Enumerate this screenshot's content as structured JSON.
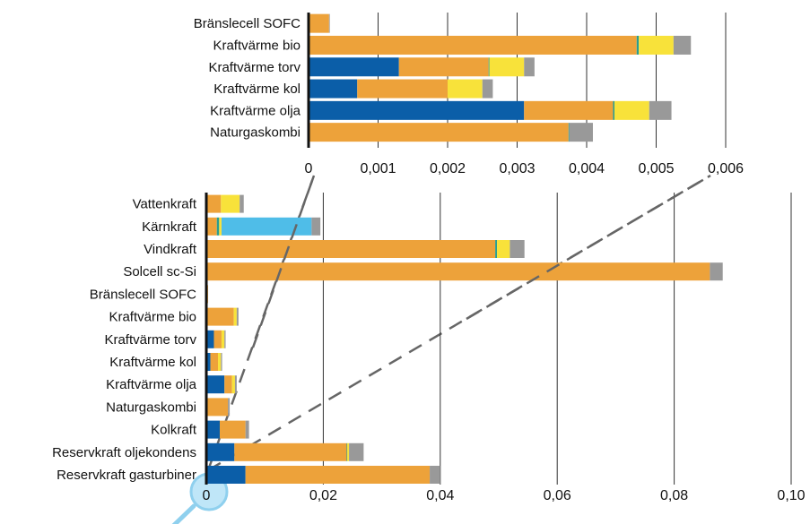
{
  "palette": {
    "dark_blue": "#0b5ea8",
    "orange": "#eda23a",
    "teal": "#2a9d8f",
    "yellow": "#f8e23a",
    "light_blue": "#4fbde8",
    "gray": "#999999",
    "grid": "#333333",
    "dash": "#666666",
    "magnifier": "#8fd0ee"
  },
  "chart_data": [
    {
      "type": "bar",
      "orientation": "horizontal",
      "stacked": true,
      "position": "top inset",
      "xlim": [
        0,
        0.006
      ],
      "xticks": [
        "0",
        "0,001",
        "0,002",
        "0,003",
        "0,004",
        "0,005",
        "0,006"
      ],
      "grid": "vertical",
      "categories": [
        "Bränslecell SOFC",
        "Kraftvärme bio",
        "Kraftvärme torv",
        "Kraftvärme kol",
        "Kraftvärme olja",
        "Naturgaskombi"
      ],
      "segment_colors": [
        "dark_blue",
        "orange",
        "teal",
        "yellow",
        "gray"
      ],
      "segments": [
        [
          0,
          0.000295,
          0,
          0,
          1e-05
        ],
        [
          0,
          0.00472,
          3e-05,
          0.0005,
          0.00025
        ],
        [
          0.0013,
          0.00129,
          1e-05,
          0.0005,
          0.00015
        ],
        [
          0.0007,
          0.0013,
          0,
          0.0005,
          0.00015
        ],
        [
          0.0031,
          0.00128,
          2e-05,
          0.0005,
          0.00032
        ],
        [
          0,
          0.00374,
          1e-05,
          0,
          0.00034
        ]
      ]
    },
    {
      "type": "bar",
      "orientation": "horizontal",
      "stacked": true,
      "position": "main",
      "xlim": [
        0,
        0.1
      ],
      "xticks": [
        "0",
        "0,02",
        "0,04",
        "0,06",
        "0,08",
        "0,10"
      ],
      "grid": "vertical",
      "categories": [
        "Vattenkraft",
        "Kärnkraft",
        "Vindkraft",
        "Solcell sc-Si",
        "Bränslecell SOFC",
        "Kraftvärme bio",
        "Kraftvärme torv",
        "Kraftvärme kol",
        "Kraftvärme olja",
        "Naturgaskombi",
        "Kolkraft",
        "Reservkraft oljekondens",
        "Reservkraft gasturbiner"
      ],
      "segment_colors": [
        "dark_blue",
        "orange",
        "teal",
        "yellow",
        "light_blue",
        "gray"
      ],
      "segments": [
        [
          0,
          0.0025,
          0,
          0.0032,
          0,
          0.0007
        ],
        [
          0,
          0.0018,
          0.0004,
          0.0004,
          0.0154,
          0.0015
        ],
        [
          0,
          0.0494,
          0.0003,
          0.0022,
          0,
          0.0025
        ],
        [
          0,
          0.0861,
          0,
          0,
          0,
          0.0022
        ],
        [
          0,
          0.0003,
          0,
          0,
          0,
          0
        ],
        [
          0,
          0.0047,
          0,
          0.0005,
          0,
          0.0003
        ],
        [
          0.0013,
          0.0013,
          0,
          0.0005,
          0,
          0.0002
        ],
        [
          0.0007,
          0.0013,
          0,
          0.0005,
          0,
          0.0002
        ],
        [
          0.0031,
          0.0013,
          0,
          0.0005,
          0,
          0.0003
        ],
        [
          0,
          0.0037,
          0,
          0,
          0,
          0.0003
        ],
        [
          0.0023,
          0.0044,
          0,
          0,
          0,
          0.0006
        ],
        [
          0.0048,
          0.0192,
          0.0001,
          0.0003,
          0,
          0.0025
        ],
        [
          0.0067,
          0.0315,
          0,
          0,
          0,
          0.0018
        ]
      ]
    }
  ]
}
